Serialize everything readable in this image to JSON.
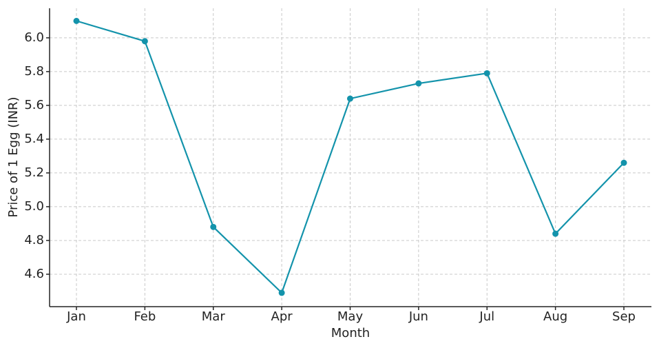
{
  "chart_data": {
    "type": "line",
    "x_label": "Month",
    "y_label": "Price of 1 Egg (INR)",
    "categories": [
      "Jan",
      "Feb",
      "Mar",
      "Apr",
      "May",
      "Jun",
      "Jul",
      "Aug",
      "Sep"
    ],
    "values": [
      6.1,
      5.98,
      4.88,
      4.49,
      5.64,
      5.73,
      5.79,
      4.84,
      5.26
    ],
    "color": "#1393ab",
    "ylim": [
      4.408,
      6.175
    ],
    "yticks": [
      4.6,
      4.8,
      {
        "value": 5,
        "label": "5.0"
      },
      5.2,
      5.4,
      5.6,
      5.8,
      {
        "value": 6,
        "label": "6.0"
      }
    ],
    "grid": true
  }
}
